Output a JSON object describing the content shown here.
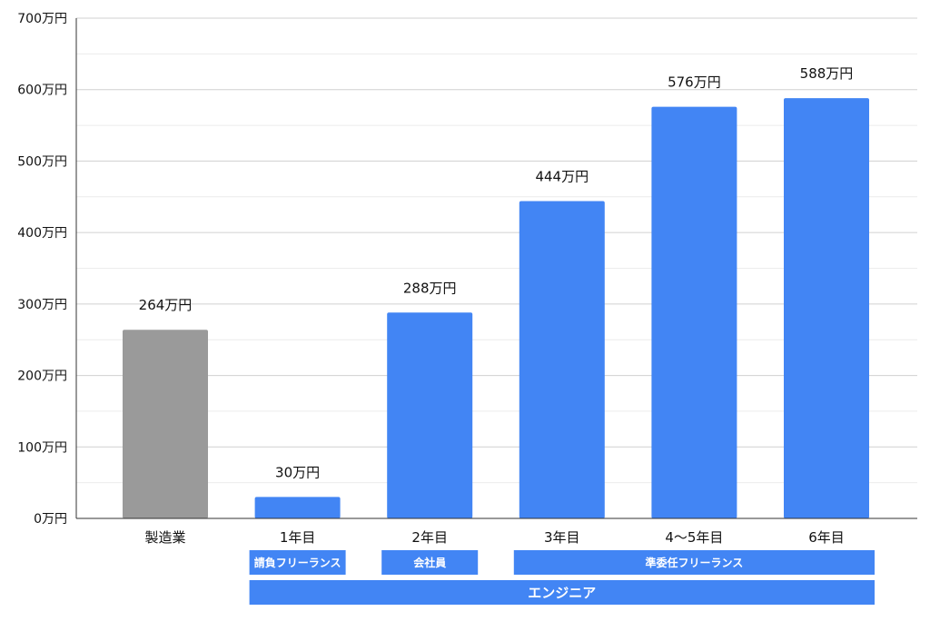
{
  "chart_data": {
    "type": "bar",
    "categories": [
      "製造業",
      "1年目",
      "2年目",
      "3年目",
      "4〜5年目",
      "6年目"
    ],
    "values": [
      264,
      30,
      288,
      444,
      576,
      588
    ],
    "data_labels": [
      "264万円",
      "30万円",
      "288万円",
      "444万円",
      "576万円",
      "588万円"
    ],
    "bar_colors": [
      "#9a9a9a",
      "#4285f4",
      "#4285f4",
      "#4285f4",
      "#4285f4",
      "#4285f4"
    ],
    "ylim": [
      0,
      700
    ],
    "yticks": [
      {
        "value": 0,
        "label": "0万円"
      },
      {
        "value": 100,
        "label": "100万円"
      },
      {
        "value": 200,
        "label": "200万円"
      },
      {
        "value": 300,
        "label": "300万円"
      },
      {
        "value": 400,
        "label": "400万円"
      },
      {
        "value": 500,
        "label": "500万円"
      },
      {
        "value": 600,
        "label": "600万円"
      },
      {
        "value": 700,
        "label": "700万円"
      }
    ],
    "grid": true,
    "groups": [
      {
        "label": "請負フリーランス",
        "from": "1年目",
        "to": "1年目"
      },
      {
        "label": "会社員",
        "from": "2年目",
        "to": "2年目"
      },
      {
        "label": "準委任フリーランス",
        "from": "3年目",
        "to": "6年目"
      }
    ],
    "supergroup": {
      "label": "エンジニア",
      "from": "1年目",
      "to": "6年目"
    },
    "band_color": "#4285f4"
  }
}
